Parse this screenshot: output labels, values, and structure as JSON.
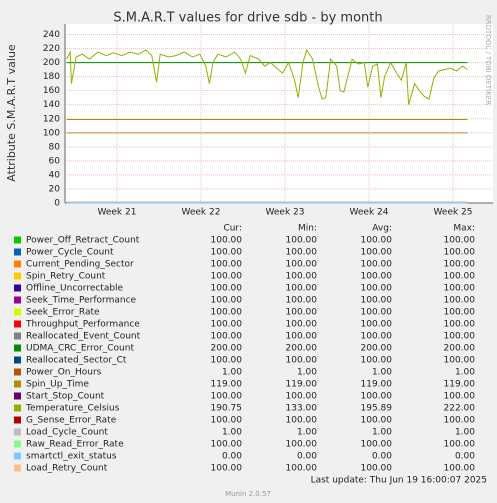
{
  "chart_data": {
    "type": "line",
    "title": "S.M.A.R.T values for drive sdb - by month",
    "y_label": "Attribute S.M.A.R.T value",
    "side_label": "RRDTOOL / TOBI OETIKER",
    "xlim": [
      -4.33,
      31.33
    ],
    "xticks": [
      {
        "value": 0,
        "label": "Week 21"
      },
      {
        "value": 7,
        "label": "Week 22"
      },
      {
        "value": 14,
        "label": "Week 23"
      },
      {
        "value": 21,
        "label": "Week 24"
      },
      {
        "value": 28,
        "label": "Week 25"
      }
    ],
    "ylim": [
      0,
      255
    ],
    "yticks": [
      0,
      20,
      40,
      60,
      80,
      100,
      120,
      140,
      160,
      180,
      200,
      220,
      240
    ],
    "grid": true,
    "stats_columns": [
      "Cur:",
      "Min:",
      "Avg:",
      "Max:"
    ],
    "series": [
      {
        "name": "Power_Off_Retract_Count",
        "color": "#00cc00",
        "x": [
          -4.2,
          29.2
        ],
        "values": [
          100,
          100
        ],
        "stats": [
          "100.00",
          "100.00",
          "100.00",
          "100.00"
        ]
      },
      {
        "name": "Power_Cycle_Count",
        "color": "#0066b3",
        "x": [
          -4.2,
          29.2
        ],
        "values": [
          100,
          100
        ],
        "stats": [
          "100.00",
          "100.00",
          "100.00",
          "100.00"
        ]
      },
      {
        "name": "Current_Pending_Sector",
        "color": "#ff8000",
        "x": [
          -4.2,
          29.2
        ],
        "values": [
          100,
          100
        ],
        "stats": [
          "100.00",
          "100.00",
          "100.00",
          "100.00"
        ]
      },
      {
        "name": "Spin_Retry_Count",
        "color": "#ffcc00",
        "x": [
          -4.2,
          29.2
        ],
        "values": [
          100,
          100
        ],
        "stats": [
          "100.00",
          "100.00",
          "100.00",
          "100.00"
        ]
      },
      {
        "name": "Offline_Uncorrectable",
        "color": "#330099",
        "x": [
          -4.2,
          29.2
        ],
        "values": [
          100,
          100
        ],
        "stats": [
          "100.00",
          "100.00",
          "100.00",
          "100.00"
        ]
      },
      {
        "name": "Seek_Time_Performance",
        "color": "#990099",
        "x": [
          -4.2,
          29.2
        ],
        "values": [
          100,
          100
        ],
        "stats": [
          "100.00",
          "100.00",
          "100.00",
          "100.00"
        ]
      },
      {
        "name": "Seek_Error_Rate",
        "color": "#ccff00",
        "x": [
          -4.2,
          29.2
        ],
        "values": [
          100,
          100
        ],
        "stats": [
          "100.00",
          "100.00",
          "100.00",
          "100.00"
        ]
      },
      {
        "name": "Throughput_Performance",
        "color": "#ff0000",
        "x": [
          -4.2,
          29.2
        ],
        "values": [
          100,
          100
        ],
        "stats": [
          "100.00",
          "100.00",
          "100.00",
          "100.00"
        ]
      },
      {
        "name": "Reallocated_Event_Count",
        "color": "#808080",
        "x": [
          -4.2,
          29.2
        ],
        "values": [
          100,
          100
        ],
        "stats": [
          "100.00",
          "100.00",
          "100.00",
          "100.00"
        ]
      },
      {
        "name": "UDMA_CRC_Error_Count",
        "color": "#008f00",
        "x": [
          -4.2,
          29.2
        ],
        "values": [
          200,
          200
        ],
        "stats": [
          "200.00",
          "200.00",
          "200.00",
          "200.00"
        ]
      },
      {
        "name": "Reallocated_Sector_Ct",
        "color": "#00487d",
        "x": [
          -4.2,
          29.2
        ],
        "values": [
          100,
          100
        ],
        "stats": [
          "100.00",
          "100.00",
          "100.00",
          "100.00"
        ]
      },
      {
        "name": "Power_On_Hours",
        "color": "#b35a00",
        "x": [
          -4.2,
          29.2
        ],
        "values": [
          1,
          1
        ],
        "stats": [
          "1.00",
          "1.00",
          "1.00",
          "1.00"
        ]
      },
      {
        "name": "Spin_Up_Time",
        "color": "#b38f00",
        "x": [
          -4.2,
          29.2
        ],
        "values": [
          119,
          119
        ],
        "stats": [
          "119.00",
          "119.00",
          "119.00",
          "119.00"
        ]
      },
      {
        "name": "Start_Stop_Count",
        "color": "#6b006b",
        "x": [
          -4.2,
          29.2
        ],
        "values": [
          100,
          100
        ],
        "stats": [
          "100.00",
          "100.00",
          "100.00",
          "100.00"
        ]
      },
      {
        "name": "Temperature_Celsius",
        "color": "#8fb300",
        "x": [
          -4.2,
          -3.9,
          -3.8,
          -3.4,
          -2.9,
          -2.3,
          -1.6,
          -0.9,
          -0.3,
          0.4,
          1.1,
          1.8,
          2.4,
          2.9,
          3.3,
          3.6,
          4.3,
          4.9,
          5.6,
          6.3,
          6.9,
          7.4,
          7.7,
          8.0,
          8.4,
          9.1,
          9.8,
          10.3,
          10.7,
          11.1,
          11.8,
          12.3,
          12.8,
          13.3,
          13.8,
          14.3,
          14.8,
          15.1,
          15.5,
          15.8,
          16.3,
          16.8,
          17.1,
          17.4,
          17.8,
          18.3,
          18.6,
          18.9,
          19.3,
          19.6,
          20.1,
          20.6,
          20.9,
          21.3,
          21.7,
          22.0,
          22.3,
          22.8,
          23.3,
          23.7,
          24.1,
          24.3,
          24.8,
          25.2,
          25.6,
          26.0,
          26.4,
          26.8,
          27.3,
          27.8,
          28.3,
          28.8,
          29.2
        ],
        "values": [
          205,
          215,
          170,
          208,
          212,
          205,
          215,
          210,
          214,
          210,
          215,
          212,
          218,
          210,
          172,
          212,
          208,
          210,
          215,
          208,
          212,
          195,
          170,
          200,
          212,
          208,
          215,
          205,
          185,
          210,
          205,
          195,
          200,
          192,
          185,
          200,
          175,
          150,
          200,
          218,
          205,
          165,
          148,
          150,
          205,
          195,
          160,
          158,
          185,
          205,
          198,
          200,
          165,
          195,
          198,
          150,
          180,
          200,
          185,
          175,
          200,
          140,
          170,
          160,
          152,
          148,
          178,
          188,
          190,
          192,
          188,
          195,
          190
        ],
        "stats": [
          "190.75",
          "133.00",
          "195.89",
          "222.00"
        ]
      },
      {
        "name": "G_Sense_Error_Rate",
        "color": "#b30000",
        "x": [
          -4.2,
          29.2
        ],
        "values": [
          100,
          100
        ],
        "stats": [
          "100.00",
          "100.00",
          "100.00",
          "100.00"
        ]
      },
      {
        "name": "Load_Cycle_Count",
        "color": "#bebebe",
        "x": [
          -4.2,
          29.2
        ],
        "values": [
          1,
          1
        ],
        "stats": [
          "1.00",
          "1.00",
          "1.00",
          "1.00"
        ]
      },
      {
        "name": "Raw_Read_Error_Rate",
        "color": "#80ff80",
        "x": [
          -4.2,
          29.2
        ],
        "values": [
          100,
          100
        ],
        "stats": [
          "100.00",
          "100.00",
          "100.00",
          "100.00"
        ]
      },
      {
        "name": "smartctl_exit_status",
        "color": "#80c9ff",
        "x": [
          -4.2,
          29.2
        ],
        "values": [
          0,
          0
        ],
        "stats": [
          "0.00",
          "0.00",
          "0.00",
          "0.00"
        ]
      },
      {
        "name": "Load_Retry_Count",
        "color": "#ffc080",
        "x": [
          -4.2,
          29.2
        ],
        "values": [
          100,
          100
        ],
        "stats": [
          "100.00",
          "100.00",
          "100.00",
          "100.00"
        ]
      }
    ],
    "last_update": "Last update: Thu Jun 19 16:00:07 2025",
    "footer": "Munin 2.0.57"
  }
}
